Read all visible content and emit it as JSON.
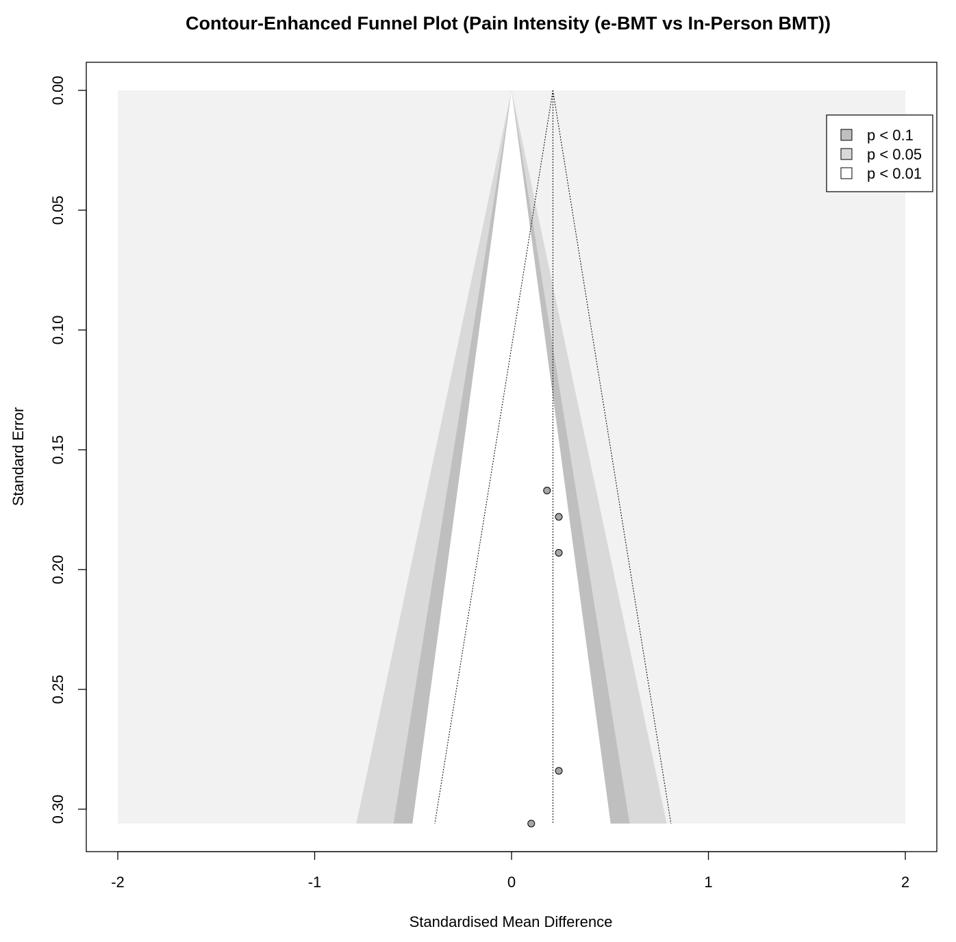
{
  "chart_data": {
    "type": "scatter",
    "title": "Contour-Enhanced Funnel Plot (Pain Intensity (e-BMT vs In-Person BMT))",
    "xlabel": "Standardised Mean Difference",
    "ylabel": "Standard Error",
    "xlim": [
      -2,
      2
    ],
    "ylim": [
      0.306,
      0
    ],
    "y_reversed": true,
    "x_ticks": [
      "-2",
      "-1",
      "0",
      "1",
      "2"
    ],
    "x_tick_values": [
      -2,
      -1,
      0,
      1,
      2
    ],
    "y_ticks": [
      "0.00",
      "0.05",
      "0.10",
      "0.15",
      "0.20",
      "0.25",
      "0.30"
    ],
    "y_tick_values": [
      0,
      0.05,
      0.1,
      0.15,
      0.2,
      0.25,
      0.3
    ],
    "grid": false,
    "pooled_estimate": 0.21,
    "contour_levels": [
      {
        "label": "p < 0.1",
        "z": 1.645,
        "color": "#bfbfbf"
      },
      {
        "label": "p < 0.05",
        "z": 1.96,
        "color": "#d9d9d9"
      },
      {
        "label": "p < 0.01",
        "z": 2.576,
        "color": "#ffffff"
      }
    ],
    "outer_region_color": "#f2f2f2",
    "points": [
      {
        "x": 0.18,
        "y": 0.167
      },
      {
        "x": 0.24,
        "y": 0.178
      },
      {
        "x": 0.24,
        "y": 0.193
      },
      {
        "x": 0.24,
        "y": 0.284
      },
      {
        "x": 0.1,
        "y": 0.306
      }
    ],
    "legend": {
      "position": "top-right",
      "entries": [
        {
          "label": "p < 0.1",
          "color": "#bfbfbf"
        },
        {
          "label": "p < 0.05",
          "color": "#d9d9d9"
        },
        {
          "label": "p < 0.01",
          "color": "#ffffff"
        }
      ]
    }
  }
}
